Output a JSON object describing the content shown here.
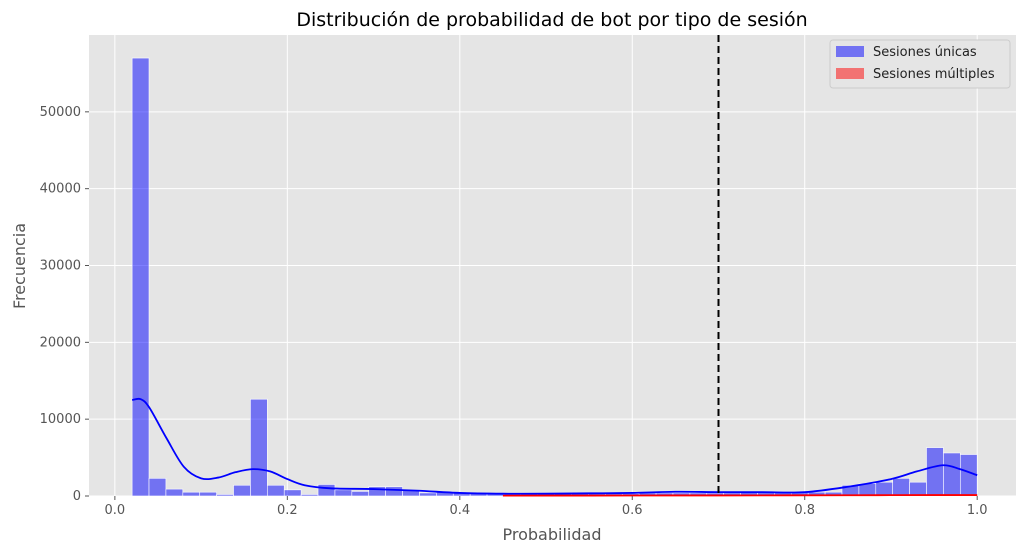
{
  "chart_data": {
    "type": "bar",
    "title": "Distribución de probabilidad de bot por tipo de sesión",
    "xlabel": "Probabilidad",
    "ylabel": "Frecuencia",
    "xlim": [
      -0.03,
      1.045
    ],
    "ylim": [
      0,
      60000
    ],
    "x_ticks": [
      0.0,
      0.2,
      0.4,
      0.6,
      0.8,
      1.0
    ],
    "x_tick_labels": [
      "0.0",
      "0.2",
      "0.4",
      "0.6",
      "0.8",
      "1.0"
    ],
    "y_ticks": [
      0,
      10000,
      20000,
      30000,
      40000,
      50000
    ],
    "y_tick_labels": [
      "0",
      "10000",
      "20000",
      "30000",
      "40000",
      "50000"
    ],
    "grid": true,
    "legend_position": "top-right",
    "bin_edges": [
      0.02,
      0.0396,
      0.0592,
      0.0788,
      0.0984,
      0.118,
      0.1376,
      0.1572,
      0.1768,
      0.1964,
      0.216,
      0.2356,
      0.2552,
      0.2748,
      0.2944,
      0.314,
      0.3336,
      0.3532,
      0.3728,
      0.3924,
      0.412,
      0.4316,
      0.4512,
      0.4708,
      0.4904,
      0.51,
      0.5296,
      0.5492,
      0.5688,
      0.5884,
      0.608,
      0.6276,
      0.6472,
      0.6668,
      0.6864,
      0.706,
      0.7256,
      0.7452,
      0.7648,
      0.7844,
      0.804,
      0.8236,
      0.8432,
      0.8628,
      0.8824,
      0.902,
      0.9216,
      0.9412,
      0.9608,
      0.9804,
      1.0
    ],
    "series": [
      {
        "name": "Sesiones únicas",
        "color": "#0000ff",
        "values": [
          57000,
          2300,
          900,
          500,
          500,
          200,
          1400,
          12600,
          1400,
          800,
          200,
          1500,
          800,
          600,
          1200,
          1200,
          700,
          400,
          500,
          400,
          300,
          300,
          300,
          300,
          300,
          300,
          300,
          300,
          300,
          300,
          400,
          400,
          400,
          400,
          400,
          400,
          500,
          500,
          500,
          500,
          500,
          500,
          1400,
          1600,
          1800,
          2300,
          1800,
          6300,
          5600,
          5400
        ],
        "kde": {
          "x": [
            0.02,
            0.03,
            0.04,
            0.06,
            0.08,
            0.1,
            0.12,
            0.14,
            0.16,
            0.18,
            0.2,
            0.22,
            0.25,
            0.3,
            0.35,
            0.4,
            0.45,
            0.5,
            0.55,
            0.6,
            0.65,
            0.7,
            0.75,
            0.8,
            0.85,
            0.9,
            0.93,
            0.96,
            0.98,
            1.0
          ],
          "y": [
            12500,
            12600,
            11500,
            7500,
            3800,
            2300,
            2400,
            3100,
            3500,
            3200,
            2200,
            1400,
            1000,
            900,
            700,
            400,
            300,
            300,
            350,
            400,
            550,
            500,
            500,
            500,
            1200,
            2200,
            3200,
            4000,
            3500,
            2700
          ]
        }
      },
      {
        "name": "Sesiones múltiples",
        "color": "#ff0000",
        "values": [
          0,
          0,
          0,
          0,
          0,
          0,
          0,
          0,
          0,
          0,
          0,
          0,
          0,
          0,
          0,
          0,
          0,
          0,
          0,
          0,
          0,
          0,
          60,
          60,
          60,
          60,
          60,
          60,
          60,
          60,
          70,
          70,
          70,
          70,
          70,
          70,
          80,
          80,
          80,
          80,
          80,
          80,
          100,
          100,
          100,
          100,
          100,
          120,
          120,
          120
        ],
        "kde": {
          "x": [
            0.45,
            0.55,
            0.65,
            0.75,
            0.85,
            0.95,
            1.0
          ],
          "y": [
            50,
            60,
            70,
            80,
            100,
            120,
            120
          ]
        }
      }
    ],
    "threshold": {
      "x": 0.7,
      "style": "dashed",
      "color": "#000000"
    }
  }
}
